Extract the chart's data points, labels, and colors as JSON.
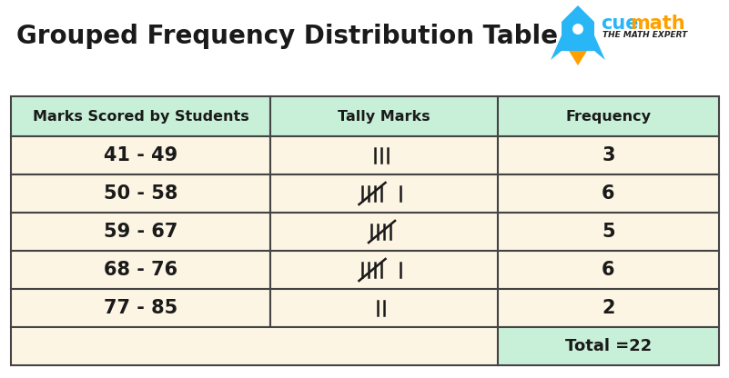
{
  "title": "Grouped Frequency Distribution Table",
  "title_fontsize": 20,
  "title_color": "#1a1a1a",
  "bg_color": "#ffffff",
  "header_bg": "#c8f0d8",
  "row_bg": "#fdf5e4",
  "total_bg": "#c8f0d8",
  "border_color": "#444444",
  "col_headers": [
    "Marks Scored by Students",
    "Tally Marks",
    "Frequency"
  ],
  "ranges": [
    "41 - 49",
    "50 - 58",
    "59 - 67",
    "68 - 76",
    "77 - 85"
  ],
  "tally_counts": [
    3,
    6,
    5,
    6,
    2
  ],
  "freqs": [
    "3",
    "6",
    "5",
    "6",
    "2"
  ],
  "total_label": "Total =22",
  "cuemath_color": "#29b6f6",
  "cuemath_math_color": "#ffa000",
  "subtitle_color": "#222222",
  "rocket_body_color": "#29b6f6",
  "rocket_flame_color": "#ffa000"
}
